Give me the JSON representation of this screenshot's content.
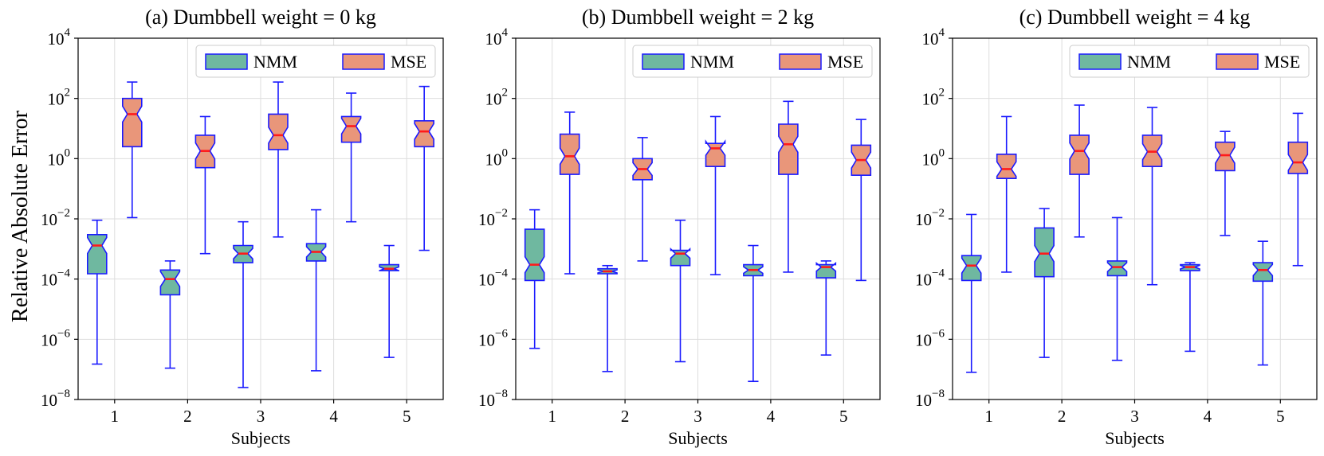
{
  "figure": {
    "ylabel": "Relative Absolute Error",
    "xlabel": "Subjects",
    "legend": [
      {
        "label": "NMM",
        "color": "#6fb8a0"
      },
      {
        "label": "MSE",
        "color": "#e9967a"
      }
    ],
    "y_ticks": [
      {
        "exp": 4,
        "base": "10",
        "sup": "4"
      },
      {
        "exp": 2,
        "base": "10",
        "sup": "2"
      },
      {
        "exp": 0,
        "base": "10",
        "sup": "0"
      },
      {
        "exp": -2,
        "base": "10",
        "sup": "−2"
      },
      {
        "exp": -4,
        "base": "10",
        "sup": "−4"
      },
      {
        "exp": -6,
        "base": "10",
        "sup": "−6"
      },
      {
        "exp": -8,
        "base": "10",
        "sup": "−8"
      }
    ],
    "box_edge_color": "#1a1aff",
    "median_color": "#ff1a1a"
  },
  "chart_data": [
    {
      "type": "boxplot",
      "title": "(a) Dumbbell weight = 0 kg",
      "xlabel": "Subjects",
      "ylabel": "Relative Absolute Error",
      "yscale": "log",
      "ylim": [
        1e-08,
        10000.0
      ],
      "categories": [
        "1",
        "2",
        "3",
        "4",
        "5"
      ],
      "legend": [
        "NMM",
        "MSE"
      ],
      "series": [
        {
          "name": "NMM",
          "boxes": [
            {
              "whislo": 1.5e-07,
              "q1": 0.00015,
              "med": 0.0013,
              "q3": 0.003,
              "whishi": 0.009
            },
            {
              "whislo": 1.1e-07,
              "q1": 3e-05,
              "med": 0.0001,
              "q3": 0.0002,
              "whishi": 0.0004
            },
            {
              "whislo": 2.5e-08,
              "q1": 0.00035,
              "med": 0.0007,
              "q3": 0.0013,
              "whishi": 0.008
            },
            {
              "whislo": 9e-08,
              "q1": 0.0004,
              "med": 0.0008,
              "q3": 0.0015,
              "whishi": 0.02
            },
            {
              "whislo": 2.5e-07,
              "q1": 0.00019,
              "med": 0.00022,
              "q3": 0.0003,
              "whishi": 0.0013
            }
          ]
        },
        {
          "name": "MSE",
          "boxes": [
            {
              "whislo": 0.011,
              "q1": 2.5,
              "med": 30,
              "q3": 100,
              "whishi": 350
            },
            {
              "whislo": 0.0007,
              "q1": 0.5,
              "med": 1.8,
              "q3": 6,
              "whishi": 25
            },
            {
              "whislo": 0.0025,
              "q1": 2,
              "med": 6,
              "q3": 30,
              "whishi": 350
            },
            {
              "whislo": 0.008,
              "q1": 3.5,
              "med": 12,
              "q3": 25,
              "whishi": 150
            },
            {
              "whislo": 0.0009,
              "q1": 2.5,
              "med": 8,
              "q3": 18,
              "whishi": 250
            }
          ]
        }
      ]
    },
    {
      "type": "boxplot",
      "title": "(b) Dumbbell weight = 2 kg",
      "xlabel": "Subjects",
      "ylabel": "",
      "yscale": "log",
      "ylim": [
        1e-08,
        10000.0
      ],
      "categories": [
        "1",
        "2",
        "3",
        "4",
        "5"
      ],
      "legend": [
        "NMM",
        "MSE"
      ],
      "series": [
        {
          "name": "NMM",
          "boxes": [
            {
              "whislo": 5e-07,
              "q1": 9e-05,
              "med": 0.0003,
              "q3": 0.0045,
              "whishi": 0.02
            },
            {
              "whislo": 8.5e-08,
              "q1": 0.00015,
              "med": 0.00018,
              "q3": 0.00022,
              "whishi": 0.00028
            },
            {
              "whislo": 1.8e-07,
              "q1": 0.00028,
              "med": 0.0007,
              "q3": 0.0009,
              "whishi": 0.009
            },
            {
              "whislo": 4e-08,
              "q1": 0.00013,
              "med": 0.0002,
              "q3": 0.0003,
              "whishi": 0.0013
            },
            {
              "whislo": 3e-07,
              "q1": 0.00011,
              "med": 0.00025,
              "q3": 0.0003,
              "whishi": 0.0004
            }
          ]
        },
        {
          "name": "MSE",
          "boxes": [
            {
              "whislo": 0.00015,
              "q1": 0.3,
              "med": 1.2,
              "q3": 6.5,
              "whishi": 35
            },
            {
              "whislo": 0.0004,
              "q1": 0.2,
              "med": 0.45,
              "q3": 1.0,
              "whishi": 5
            },
            {
              "whislo": 0.00014,
              "q1": 0.55,
              "med": 2.2,
              "q3": 3.2,
              "whishi": 25
            },
            {
              "whislo": 0.00017,
              "q1": 0.3,
              "med": 3,
              "q3": 14,
              "whishi": 80
            },
            {
              "whislo": 9e-05,
              "q1": 0.28,
              "med": 0.9,
              "q3": 2.8,
              "whishi": 20
            }
          ]
        }
      ]
    },
    {
      "type": "boxplot",
      "title": "(c) Dumbbell weight = 4 kg",
      "xlabel": "Subjects",
      "ylabel": "",
      "yscale": "log",
      "ylim": [
        1e-08,
        10000.0
      ],
      "categories": [
        "1",
        "2",
        "3",
        "4",
        "5"
      ],
      "legend": [
        "NMM",
        "MSE"
      ],
      "series": [
        {
          "name": "NMM",
          "boxes": [
            {
              "whislo": 8e-08,
              "q1": 9e-05,
              "med": 0.00028,
              "q3": 0.0006,
              "whishi": 0.014
            },
            {
              "whislo": 2.5e-07,
              "q1": 0.00012,
              "med": 0.0007,
              "q3": 0.005,
              "whishi": 0.022
            },
            {
              "whislo": 2e-07,
              "q1": 0.00013,
              "med": 0.00025,
              "q3": 0.0004,
              "whishi": 0.011
            },
            {
              "whislo": 4e-07,
              "q1": 0.00019,
              "med": 0.00025,
              "q3": 0.0003,
              "whishi": 0.00035
            },
            {
              "whislo": 1.4e-07,
              "q1": 8.5e-05,
              "med": 0.0002,
              "q3": 0.00035,
              "whishi": 0.0018
            }
          ]
        },
        {
          "name": "MSE",
          "boxes": [
            {
              "whislo": 0.00017,
              "q1": 0.22,
              "med": 0.45,
              "q3": 1.4,
              "whishi": 25
            },
            {
              "whislo": 0.0025,
              "q1": 0.3,
              "med": 1.8,
              "q3": 6,
              "whishi": 60
            },
            {
              "whislo": 6.5e-05,
              "q1": 0.55,
              "med": 1.7,
              "q3": 6,
              "whishi": 50
            },
            {
              "whislo": 0.0028,
              "q1": 0.4,
              "med": 1.3,
              "q3": 3.5,
              "whishi": 8
            },
            {
              "whislo": 0.00028,
              "q1": 0.32,
              "med": 0.75,
              "q3": 3.5,
              "whishi": 32
            }
          ]
        }
      ]
    }
  ]
}
